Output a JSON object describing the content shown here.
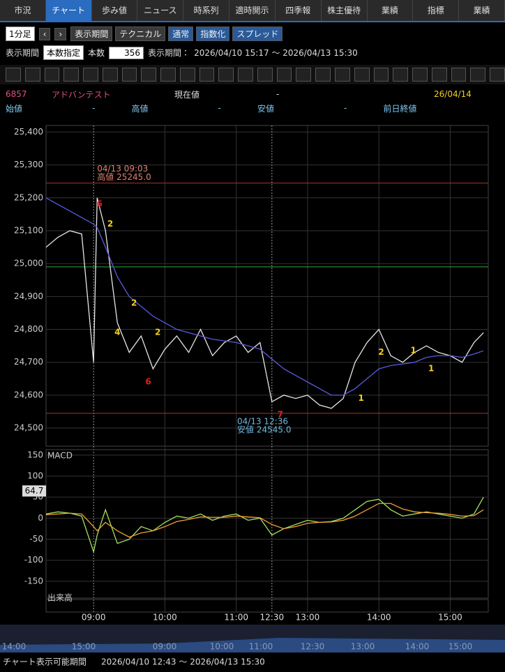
{
  "tabs": [
    "市況",
    "チャート",
    "歩み値",
    "ニュース",
    "時系列",
    "適時開示",
    "四季報",
    "株主優待",
    "業績",
    "指標",
    "業績"
  ],
  "toolbar": {
    "interval": "1分足",
    "buttons": [
      "表示期間",
      "テクニカル",
      "通常",
      "指数化",
      "スプレッド"
    ]
  },
  "period_row": {
    "label": "表示期間",
    "mode": "本数指定",
    "count_label": "本数",
    "count": "356",
    "range_label": "表示期間：",
    "range": "2026/04/10 15:17 ～ 2026/04/13 15:30"
  },
  "info": {
    "code": "6857",
    "name": "アドバンテスト",
    "current_label": "現在値",
    "current": "-",
    "date": "26/04/14",
    "fields": [
      [
        "始値",
        "-"
      ],
      [
        "高値",
        "-"
      ],
      [
        "安値",
        "-"
      ],
      [
        "前日終値",
        ""
      ]
    ]
  },
  "chart_data": [
    {
      "type": "line",
      "x": [
        -40,
        -30,
        -20,
        -10,
        0,
        3,
        10,
        20,
        30,
        40,
        50,
        60,
        70,
        80,
        90,
        100,
        110,
        120,
        130,
        140,
        150,
        160,
        170,
        180,
        190,
        200,
        210,
        220,
        230,
        240,
        250,
        260,
        270,
        280,
        290,
        300,
        310,
        320,
        328
      ],
      "series": [
        {
          "color": "#e6e6e6",
          "values": [
            25050,
            25080,
            25100,
            25090,
            24700,
            25200,
            25100,
            24820,
            24730,
            24780,
            24680,
            24740,
            24780,
            24730,
            24800,
            24720,
            24760,
            24780,
            24730,
            24760,
            24580,
            24600,
            24590,
            24600,
            24570,
            24560,
            24590,
            24700,
            24760,
            24800,
            24720,
            24700,
            24730,
            24750,
            24730,
            24720,
            24700,
            24760,
            24790
          ]
        },
        {
          "color": "#5a5ae0",
          "values": [
            25200,
            25180,
            25160,
            25140,
            25120,
            25110,
            25050,
            24960,
            24900,
            24870,
            24840,
            24820,
            24800,
            24790,
            24780,
            24770,
            24765,
            24760,
            24750,
            24740,
            24710,
            24680,
            24660,
            24640,
            24620,
            24600,
            24600,
            24620,
            24650,
            24680,
            24690,
            24695,
            24700,
            24715,
            24720,
            24720,
            24715,
            24725,
            24735
          ]
        }
      ],
      "xlim": [
        -40,
        332
      ],
      "ylim": [
        24445,
        25420
      ],
      "xticks": [
        {
          "value": 0,
          "label": "09:00"
        },
        {
          "value": 60,
          "label": "10:00"
        },
        {
          "value": 120,
          "label": "11:00"
        },
        {
          "value": 150,
          "label": "12:30"
        },
        {
          "value": 180,
          "label": "13:00"
        },
        {
          "value": 240,
          "label": "14:00"
        },
        {
          "value": 300,
          "label": "15:00"
        }
      ],
      "yticks": [
        {
          "value": 24500,
          "label": "24,500"
        },
        {
          "value": 24600,
          "label": "24,600"
        },
        {
          "value": 24700,
          "label": "24,700"
        },
        {
          "value": 24800,
          "label": "24,800"
        },
        {
          "value": 24900,
          "label": "24,900"
        },
        {
          "value": 25000,
          "label": "25,000"
        },
        {
          "value": 25100,
          "label": "25,100"
        },
        {
          "value": 25200,
          "label": "25,200"
        },
        {
          "value": 25300,
          "label": "25,300"
        },
        {
          "value": 25400,
          "label": "25,400"
        }
      ],
      "hlines": [
        {
          "value": 25245,
          "color": "#a03a2a"
        },
        {
          "value": 24545,
          "color": "#a03a2a"
        },
        {
          "value": 24990,
          "color": "#2eaa3a"
        }
      ],
      "annotations": [
        {
          "x": 3,
          "y": 25245,
          "lines": [
            "04/13 09:03",
            "高値 25245.0"
          ],
          "color": "#e08070"
        },
        {
          "x": 156,
          "y": 24545,
          "lines": [
            "04/13 12:36",
            "安値 24545.0"
          ],
          "color": "#70b8e0"
        }
      ],
      "signals": [
        {
          "label": "6",
          "x": 5,
          "y": 25180,
          "color": "#e02020"
        },
        {
          "label": "2",
          "x": 14,
          "y": 25120,
          "color": "#f0d020"
        },
        {
          "label": "2",
          "x": 34,
          "y": 24880,
          "color": "#f0d020"
        },
        {
          "label": "4",
          "x": 20,
          "y": 24790,
          "color": "#f0d020"
        },
        {
          "label": "6",
          "x": 46,
          "y": 24640,
          "color": "#e02020"
        },
        {
          "label": "2",
          "x": 54,
          "y": 24790,
          "color": "#f0d020"
        },
        {
          "label": "7",
          "x": 157,
          "y": 24540,
          "color": "#e02020"
        },
        {
          "label": "1",
          "x": 225,
          "y": 24590,
          "color": "#f0d020"
        },
        {
          "label": "2",
          "x": 242,
          "y": 24730,
          "color": "#f0d020"
        },
        {
          "label": "1",
          "x": 269,
          "y": 24735,
          "color": "#f0d020"
        },
        {
          "label": "1",
          "x": 284,
          "y": 24680,
          "color": "#f0d020"
        }
      ]
    },
    {
      "type": "line",
      "title": "MACD",
      "badge": 64.7,
      "x": [
        -40,
        -30,
        -20,
        -10,
        0,
        3,
        10,
        20,
        30,
        40,
        50,
        60,
        70,
        80,
        90,
        100,
        110,
        120,
        130,
        140,
        150,
        160,
        170,
        180,
        190,
        200,
        210,
        220,
        230,
        240,
        250,
        260,
        270,
        280,
        290,
        300,
        310,
        320,
        328
      ],
      "series": [
        {
          "color": "#a6e060",
          "values": [
            10,
            15,
            12,
            5,
            -80,
            -40,
            20,
            -60,
            -50,
            -20,
            -30,
            -10,
            5,
            0,
            10,
            -5,
            5,
            10,
            -5,
            0,
            -40,
            -25,
            -15,
            -5,
            -10,
            -8,
            0,
            20,
            40,
            45,
            20,
            5,
            10,
            15,
            10,
            5,
            0,
            10,
            50
          ]
        },
        {
          "color": "#f0a030",
          "values": [
            8,
            10,
            12,
            10,
            -20,
            -30,
            -10,
            -30,
            -45,
            -35,
            -30,
            -20,
            -8,
            -3,
            3,
            2,
            2,
            5,
            3,
            1,
            -15,
            -25,
            -20,
            -12,
            -10,
            -9,
            -5,
            5,
            20,
            35,
            35,
            22,
            15,
            13,
            12,
            9,
            5,
            6,
            20
          ]
        }
      ],
      "xlim": [
        -40,
        332
      ],
      "ylim": [
        -190,
        163
      ],
      "yticks": [
        -150,
        -100,
        -50,
        0,
        50,
        100,
        150
      ]
    },
    {
      "type": "bar",
      "title": "出来高"
    }
  ],
  "overview": {
    "labels": [
      "14:00",
      "15:00",
      "09:00",
      "10:00",
      "11:00",
      "12:30",
      "13:00",
      "14:00",
      "15:00"
    ]
  },
  "footer": {
    "label": "チャート表示可能期間",
    "range": "2026/04/10 12:43 ～ 2026/04/13 15:30"
  }
}
